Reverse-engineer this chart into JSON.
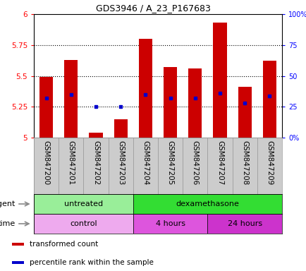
{
  "title": "GDS3946 / A_23_P167683",
  "samples": [
    "GSM847200",
    "GSM847201",
    "GSM847202",
    "GSM847203",
    "GSM847204",
    "GSM847205",
    "GSM847206",
    "GSM847207",
    "GSM847208",
    "GSM847209"
  ],
  "transformed_count": [
    5.49,
    5.63,
    5.04,
    5.15,
    5.8,
    5.57,
    5.56,
    5.93,
    5.41,
    5.62
  ],
  "percentile_rank": [
    32,
    35,
    25,
    25,
    35,
    32,
    32,
    36,
    28,
    34
  ],
  "ylim": [
    5.0,
    6.0
  ],
  "yticks": [
    5.0,
    5.25,
    5.5,
    5.75,
    6.0
  ],
  "ytick_labels": [
    "5",
    "5.25",
    "5.5",
    "5.75",
    "6"
  ],
  "right_ytick_labels": [
    "0%",
    "25",
    "50",
    "75",
    "100%"
  ],
  "right_yticks": [
    0,
    25,
    50,
    75,
    100
  ],
  "bar_color": "#cc0000",
  "dot_color": "#0000cc",
  "agent_groups": [
    {
      "label": "untreated",
      "start": 0,
      "end": 4,
      "color": "#99ee99"
    },
    {
      "label": "dexamethasone",
      "start": 4,
      "end": 10,
      "color": "#33dd33"
    }
  ],
  "time_groups": [
    {
      "label": "control",
      "start": 0,
      "end": 4,
      "color": "#eeaaee"
    },
    {
      "label": "4 hours",
      "start": 4,
      "end": 7,
      "color": "#dd55dd"
    },
    {
      "label": "24 hours",
      "start": 7,
      "end": 10,
      "color": "#cc33cc"
    }
  ],
  "legend_items": [
    {
      "color": "#cc0000",
      "label": "transformed count"
    },
    {
      "color": "#0000cc",
      "label": "percentile rank within the sample"
    }
  ],
  "fig_bg": "#ffffff"
}
